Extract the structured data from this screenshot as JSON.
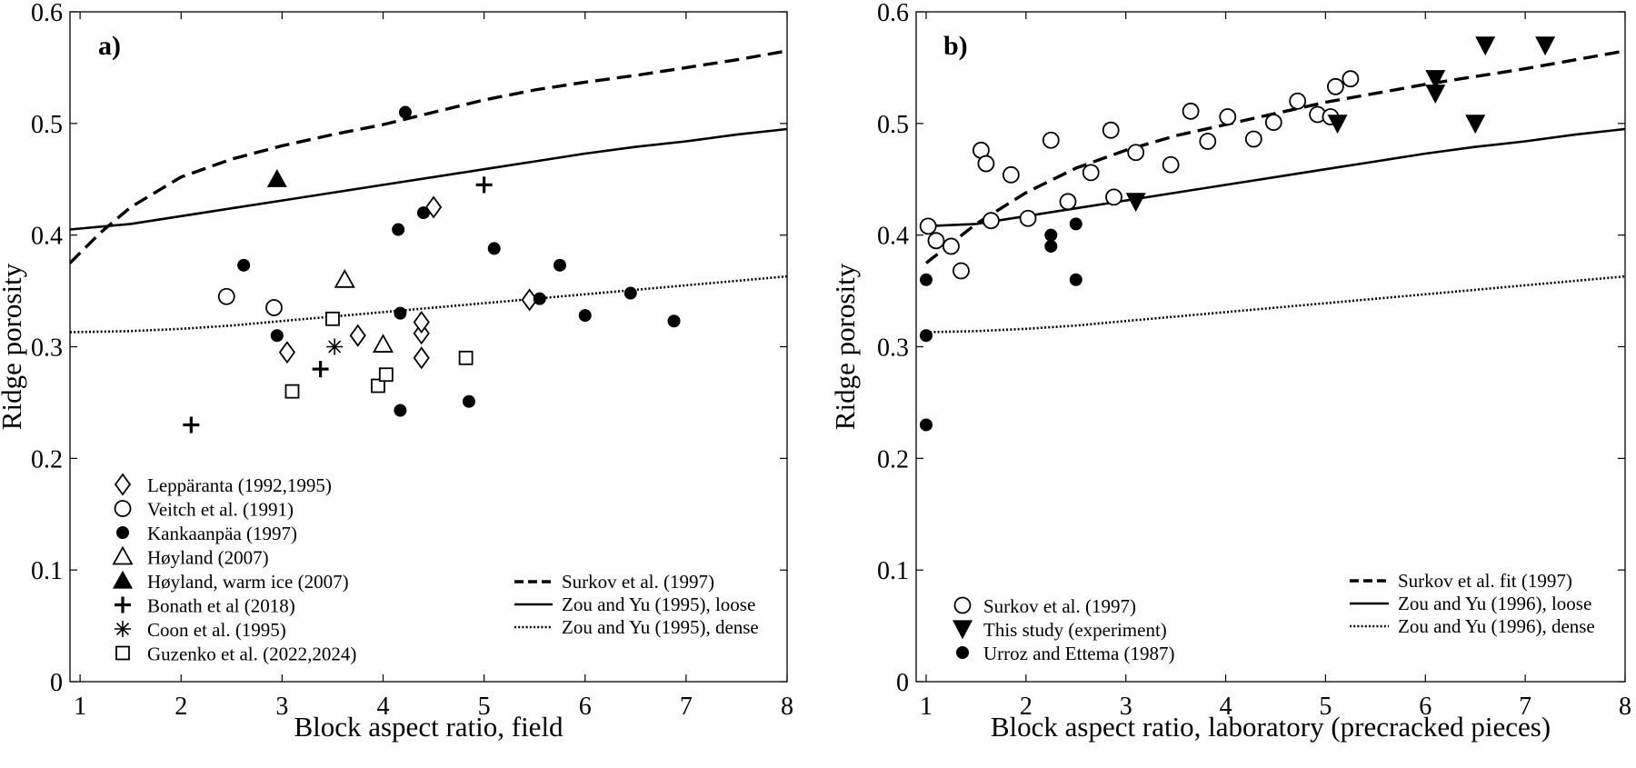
{
  "chart_data": [
    {
      "type": "scatter",
      "panel_label": "a)",
      "xlabel": "Block aspect ratio, field",
      "ylabel": "Ridge porosity",
      "xlim": [
        0.9,
        8
      ],
      "ylim": [
        0,
        0.6
      ],
      "xticks": [
        1,
        2,
        3,
        4,
        5,
        6,
        7,
        8
      ],
      "yticks": [
        0,
        0.1,
        0.2,
        0.3,
        0.4,
        0.5,
        0.6
      ],
      "ytick_labels": [
        "0",
        "0.1",
        "0.2",
        "0.3",
        "0.4",
        "0.5",
        "0.6"
      ],
      "grid": false,
      "series": [
        {
          "name": "Leppäranta (1992,1995)",
          "marker": "diamond-open",
          "points": [
            [
              3.05,
              0.295
            ],
            [
              3.75,
              0.31
            ],
            [
              4.38,
              0.29
            ],
            [
              4.38,
              0.312
            ],
            [
              4.38,
              0.322
            ],
            [
              4.5,
              0.425
            ],
            [
              5.45,
              0.342
            ]
          ]
        },
        {
          "name": "Veitch et al. (1991)",
          "marker": "circle-open",
          "points": [
            [
              2.45,
              0.345
            ],
            [
              2.92,
              0.335
            ]
          ]
        },
        {
          "name": "Kankaanpäa (1997)",
          "marker": "circle-filled",
          "points": [
            [
              2.62,
              0.373
            ],
            [
              2.95,
              0.31
            ],
            [
              4.15,
              0.405
            ],
            [
              4.17,
              0.33
            ],
            [
              4.17,
              0.243
            ],
            [
              4.22,
              0.51
            ],
            [
              4.4,
              0.42
            ],
            [
              4.85,
              0.251
            ],
            [
              5.1,
              0.388
            ],
            [
              5.55,
              0.343
            ],
            [
              5.75,
              0.373
            ],
            [
              6.0,
              0.328
            ],
            [
              6.45,
              0.348
            ],
            [
              6.88,
              0.323
            ]
          ]
        },
        {
          "name": "Høyland (2007)",
          "marker": "triangle-open",
          "points": [
            [
              3.62,
              0.36
            ],
            [
              4.0,
              0.302
            ]
          ]
        },
        {
          "name": "Høyland, warm ice (2007)",
          "marker": "triangle-filled",
          "points": [
            [
              2.95,
              0.45
            ]
          ]
        },
        {
          "name": "Bonath et al (2018)",
          "marker": "plus",
          "points": [
            [
              2.1,
              0.23
            ],
            [
              3.38,
              0.28
            ],
            [
              5.0,
              0.445
            ]
          ]
        },
        {
          "name": "Coon et al. (1995)",
          "marker": "asterisk",
          "points": [
            [
              3.52,
              0.3
            ]
          ]
        },
        {
          "name": "Guzenko et al. (2022,2024)",
          "marker": "square-open",
          "points": [
            [
              3.1,
              0.26
            ],
            [
              3.5,
              0.325
            ],
            [
              3.95,
              0.265
            ],
            [
              4.03,
              0.275
            ],
            [
              4.82,
              0.29
            ]
          ]
        }
      ],
      "curves": [
        {
          "name": "Surkov et al. (1997)",
          "style": "dashed",
          "x": [
            0.9,
            1.2,
            1.5,
            2,
            2.5,
            3,
            3.5,
            4,
            4.5,
            5,
            5.5,
            6,
            6.5,
            7,
            7.5,
            8
          ],
          "y": [
            0.375,
            0.402,
            0.425,
            0.452,
            0.468,
            0.48,
            0.49,
            0.499,
            0.51,
            0.521,
            0.53,
            0.537,
            0.543,
            0.55,
            0.557,
            0.565
          ]
        },
        {
          "name": "Zou and Yu (1995), loose",
          "style": "solid",
          "x": [
            0.9,
            1.5,
            2,
            2.5,
            3,
            3.5,
            4,
            4.5,
            5,
            5.5,
            6,
            6.5,
            7,
            7.5,
            8
          ],
          "y": [
            0.405,
            0.41,
            0.417,
            0.424,
            0.431,
            0.438,
            0.445,
            0.452,
            0.459,
            0.466,
            0.473,
            0.479,
            0.484,
            0.49,
            0.495
          ]
        },
        {
          "name": "Zou and Yu (1995), dense",
          "style": "dotted",
          "x": [
            0.9,
            1.5,
            2,
            2.5,
            3,
            3.5,
            4,
            4.5,
            5,
            5.5,
            6,
            6.5,
            7,
            7.5,
            8
          ],
          "y": [
            0.313,
            0.314,
            0.316,
            0.319,
            0.323,
            0.327,
            0.331,
            0.335,
            0.339,
            0.343,
            0.347,
            0.351,
            0.355,
            0.359,
            0.363
          ]
        }
      ]
    },
    {
      "type": "scatter",
      "panel_label": "b)",
      "xlabel": "Block aspect ratio, laboratory (precracked pieces)",
      "ylabel": "Ridge porosity",
      "xlim": [
        0.9,
        8
      ],
      "ylim": [
        0,
        0.6
      ],
      "xticks": [
        1,
        2,
        3,
        4,
        5,
        6,
        7,
        8
      ],
      "yticks": [
        0,
        0.1,
        0.2,
        0.3,
        0.4,
        0.5,
        0.6
      ],
      "ytick_labels": [
        "0",
        "0.1",
        "0.2",
        "0.3",
        "0.4",
        "0.5",
        "0.6"
      ],
      "grid": false,
      "series": [
        {
          "name": "Surkov et al. (1997)",
          "marker": "circle-open",
          "points": [
            [
              1.02,
              0.408
            ],
            [
              1.1,
              0.395
            ],
            [
              1.25,
              0.39
            ],
            [
              1.35,
              0.368
            ],
            [
              1.55,
              0.476
            ],
            [
              1.6,
              0.464
            ],
            [
              1.65,
              0.413
            ],
            [
              1.85,
              0.454
            ],
            [
              2.02,
              0.415
            ],
            [
              2.25,
              0.485
            ],
            [
              2.42,
              0.43
            ],
            [
              2.65,
              0.456
            ],
            [
              2.85,
              0.494
            ],
            [
              2.88,
              0.434
            ],
            [
              3.1,
              0.474
            ],
            [
              3.45,
              0.463
            ],
            [
              3.65,
              0.511
            ],
            [
              3.82,
              0.484
            ],
            [
              4.02,
              0.506
            ],
            [
              4.28,
              0.486
            ],
            [
              4.48,
              0.501
            ],
            [
              4.72,
              0.52
            ],
            [
              4.92,
              0.508
            ],
            [
              5.05,
              0.506
            ],
            [
              5.1,
              0.533
            ],
            [
              5.25,
              0.54
            ]
          ]
        },
        {
          "name": "This study (experiment)",
          "marker": "triangle-down-filled",
          "points": [
            [
              3.1,
              0.43
            ],
            [
              5.12,
              0.5
            ],
            [
              6.1,
              0.54
            ],
            [
              6.1,
              0.527
            ],
            [
              6.5,
              0.5
            ],
            [
              6.6,
              0.57
            ],
            [
              7.2,
              0.57
            ]
          ]
        },
        {
          "name": "Urroz and Ettema (1987)",
          "marker": "circle-filled",
          "points": [
            [
              1.0,
              0.36
            ],
            [
              1.0,
              0.31
            ],
            [
              1.0,
              0.23
            ],
            [
              2.25,
              0.4
            ],
            [
              2.25,
              0.39
            ],
            [
              2.5,
              0.41
            ],
            [
              2.5,
              0.36
            ]
          ]
        }
      ],
      "curves": [
        {
          "name": "Surkov et al. fit (1997)",
          "style": "dashed",
          "x": [
            1,
            1.5,
            2,
            2.5,
            3,
            3.5,
            4,
            4.5,
            5,
            5.5,
            6,
            6.5,
            7,
            7.5,
            8
          ],
          "y": [
            0.375,
            0.41,
            0.438,
            0.46,
            0.476,
            0.489,
            0.499,
            0.509,
            0.519,
            0.527,
            0.535,
            0.542,
            0.549,
            0.557,
            0.565
          ]
        },
        {
          "name": "Zou and Yu (1996), loose",
          "style": "solid",
          "x": [
            1,
            1.5,
            2,
            2.5,
            3,
            3.5,
            4,
            4.5,
            5,
            5.5,
            6,
            6.5,
            7,
            7.5,
            8
          ],
          "y": [
            0.408,
            0.41,
            0.417,
            0.424,
            0.431,
            0.438,
            0.445,
            0.452,
            0.459,
            0.466,
            0.473,
            0.479,
            0.484,
            0.49,
            0.495
          ]
        },
        {
          "name": "Zou and Yu (1996), dense",
          "style": "dotted",
          "x": [
            1,
            1.5,
            2,
            2.5,
            3,
            3.5,
            4,
            4.5,
            5,
            5.5,
            6,
            6.5,
            7,
            7.5,
            8
          ],
          "y": [
            0.313,
            0.314,
            0.316,
            0.319,
            0.323,
            0.327,
            0.331,
            0.335,
            0.339,
            0.343,
            0.347,
            0.351,
            0.355,
            0.359,
            0.363
          ]
        }
      ]
    }
  ]
}
